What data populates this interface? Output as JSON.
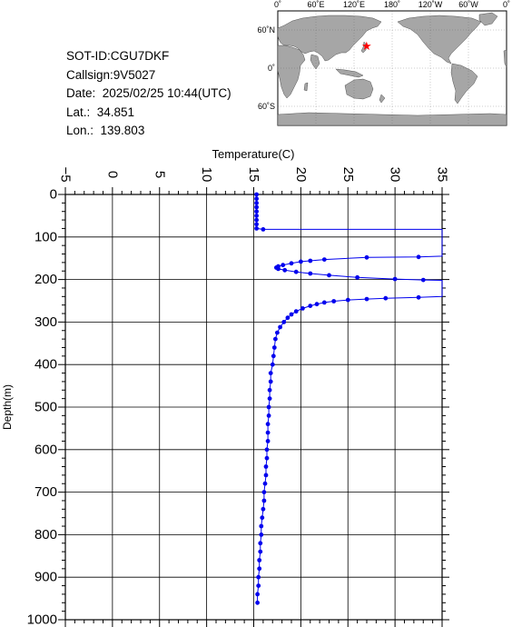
{
  "info": {
    "sot_id": "SOT-ID:CGU7DKF",
    "callsign": "Callsign:9V5027",
    "date": "Date:  2025/02/25 10:44(UTC)",
    "lat": "Lat.:  34.851",
    "lon": "Lon.:  139.803"
  },
  "map": {
    "lon_labels": [
      "0˚",
      "60˚E",
      "120˚E",
      "180˚",
      "120˚W",
      "60˚W",
      "0˚"
    ],
    "lat_labels": [
      "60˚N",
      "0˚",
      "60˚S"
    ],
    "marker": {
      "lat": 34.851,
      "lon": 139.803,
      "symbol": "★",
      "color": "#ff0000"
    },
    "ocean_color": "#ffffff",
    "land_color": "#a6a6a6"
  },
  "chart_data": {
    "type": "line",
    "title": "",
    "xlabel": "Temperature(C)",
    "ylabel": "Depth(m)",
    "xlim": [
      -5,
      35
    ],
    "ylim": [
      1000,
      0
    ],
    "x_ticks": [
      "−5",
      "0",
      "5",
      "10",
      "15",
      "20",
      "25",
      "30",
      "35"
    ],
    "y_ticks": [
      "0",
      "100",
      "200",
      "300",
      "400",
      "500",
      "600",
      "700",
      "800",
      "900",
      "1000"
    ],
    "x_axis_position": "top",
    "grid": true,
    "series_color": "#0000ee",
    "series": [
      {
        "points": [
          [
            15.3,
            0
          ],
          [
            15.3,
            10
          ],
          [
            15.3,
            20
          ],
          [
            15.3,
            30
          ],
          [
            15.3,
            40
          ],
          [
            15.3,
            50
          ],
          [
            15.3,
            60
          ],
          [
            15.3,
            70
          ],
          [
            15.3,
            80
          ],
          [
            16.0,
            82
          ],
          [
            35,
            82
          ],
          [
            35,
            145
          ],
          [
            32.5,
            147
          ],
          [
            27,
            148
          ],
          [
            22.5,
            153
          ],
          [
            21,
            156
          ],
          [
            20,
            158
          ],
          [
            19,
            162
          ],
          [
            18.1,
            166
          ],
          [
            17.6,
            169
          ],
          [
            17.4,
            172
          ],
          [
            17.6,
            175
          ],
          [
            18.3,
            178
          ],
          [
            19.5,
            182
          ],
          [
            21,
            186
          ],
          [
            23,
            190
          ],
          [
            26,
            195
          ],
          [
            30,
            199
          ],
          [
            33,
            201
          ],
          [
            35,
            202
          ],
          [
            35,
            240
          ],
          [
            32.5,
            242
          ],
          [
            29,
            244
          ],
          [
            27,
            246
          ],
          [
            25,
            248
          ],
          [
            23.5,
            251
          ],
          [
            22.5,
            254
          ],
          [
            21.7,
            258
          ],
          [
            21,
            262
          ],
          [
            20.2,
            268
          ],
          [
            19.5,
            275
          ],
          [
            19,
            282
          ],
          [
            18.6,
            290
          ],
          [
            18.2,
            300
          ],
          [
            17.8,
            312
          ],
          [
            17.5,
            325
          ],
          [
            17.3,
            340
          ],
          [
            17.2,
            360
          ],
          [
            17.1,
            380
          ],
          [
            17.0,
            400
          ],
          [
            16.8,
            420
          ],
          [
            16.8,
            440
          ],
          [
            16.7,
            460
          ],
          [
            16.7,
            480
          ],
          [
            16.6,
            500
          ],
          [
            16.6,
            520
          ],
          [
            16.5,
            540
          ],
          [
            16.5,
            560
          ],
          [
            16.5,
            580
          ],
          [
            16.4,
            600
          ],
          [
            16.4,
            620
          ],
          [
            16.3,
            640
          ],
          [
            16.3,
            660
          ],
          [
            16.2,
            680
          ],
          [
            16.1,
            700
          ],
          [
            16.1,
            720
          ],
          [
            16.0,
            740
          ],
          [
            15.9,
            760
          ],
          [
            15.8,
            780
          ],
          [
            15.8,
            800
          ],
          [
            15.7,
            820
          ],
          [
            15.7,
            840
          ],
          [
            15.6,
            860
          ],
          [
            15.6,
            880
          ],
          [
            15.5,
            900
          ],
          [
            15.5,
            920
          ],
          [
            15.4,
            940
          ],
          [
            15.4,
            960
          ]
        ]
      }
    ]
  }
}
